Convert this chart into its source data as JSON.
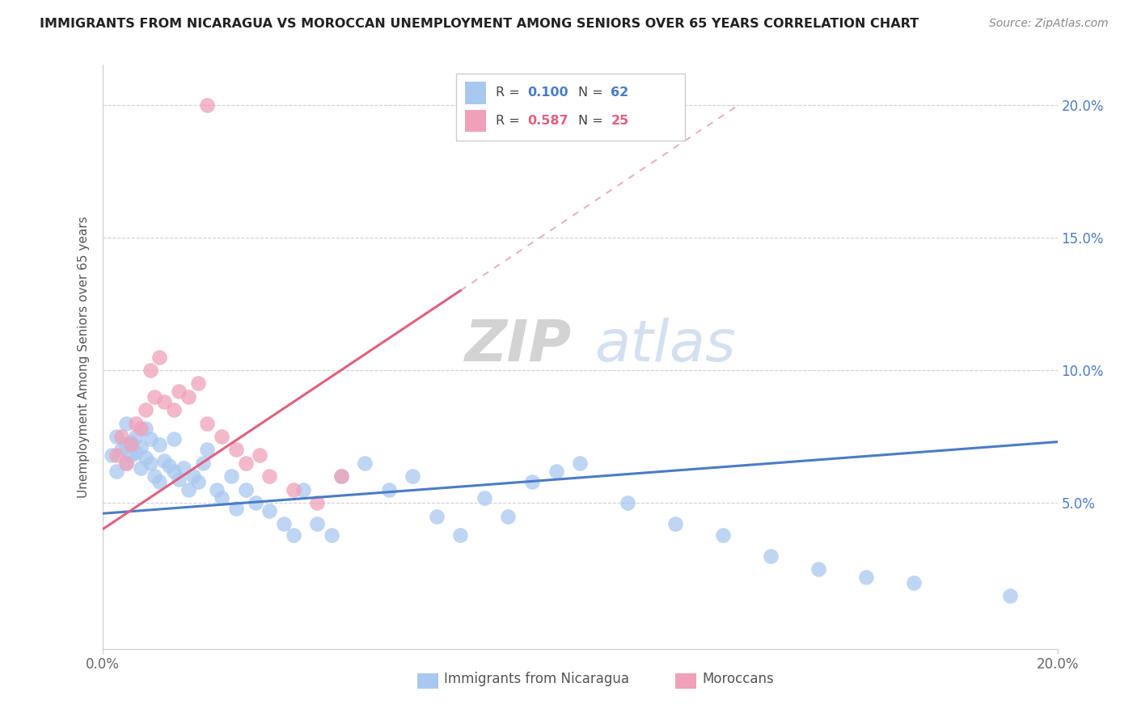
{
  "title": "IMMIGRANTS FROM NICARAGUA VS MOROCCAN UNEMPLOYMENT AMONG SENIORS OVER 65 YEARS CORRELATION CHART",
  "source": "Source: ZipAtlas.com",
  "ylabel": "Unemployment Among Seniors over 65 years",
  "xlim": [
    0.0,
    0.2
  ],
  "ylim": [
    -0.005,
    0.215
  ],
  "legend_r1": "R = 0.100",
  "legend_n1": "N = 62",
  "legend_r2": "R = 0.587",
  "legend_n2": "N = 25",
  "blue_color": "#a8c8f0",
  "pink_color": "#f0a0b8",
  "blue_line_color": "#4a7cc7",
  "pink_line_color": "#e06080",
  "watermark_zip": "ZIP",
  "watermark_atlas": "atlas",
  "background_color": "#ffffff",
  "blue_scatter_x": [
    0.002,
    0.003,
    0.003,
    0.004,
    0.005,
    0.005,
    0.005,
    0.006,
    0.006,
    0.007,
    0.007,
    0.008,
    0.008,
    0.009,
    0.009,
    0.01,
    0.01,
    0.011,
    0.012,
    0.012,
    0.013,
    0.014,
    0.015,
    0.015,
    0.016,
    0.017,
    0.018,
    0.019,
    0.02,
    0.021,
    0.022,
    0.024,
    0.025,
    0.027,
    0.028,
    0.03,
    0.032,
    0.035,
    0.038,
    0.04,
    0.042,
    0.045,
    0.048,
    0.05,
    0.055,
    0.06,
    0.065,
    0.07,
    0.075,
    0.08,
    0.085,
    0.09,
    0.095,
    0.1,
    0.11,
    0.12,
    0.13,
    0.14,
    0.15,
    0.16,
    0.17,
    0.19
  ],
  "blue_scatter_y": [
    0.068,
    0.062,
    0.075,
    0.07,
    0.065,
    0.072,
    0.08,
    0.068,
    0.073,
    0.069,
    0.075,
    0.063,
    0.071,
    0.067,
    0.078,
    0.065,
    0.074,
    0.06,
    0.058,
    0.072,
    0.066,
    0.064,
    0.062,
    0.074,
    0.059,
    0.063,
    0.055,
    0.06,
    0.058,
    0.065,
    0.07,
    0.055,
    0.052,
    0.06,
    0.048,
    0.055,
    0.05,
    0.047,
    0.042,
    0.038,
    0.055,
    0.042,
    0.038,
    0.06,
    0.065,
    0.055,
    0.06,
    0.045,
    0.038,
    0.052,
    0.045,
    0.058,
    0.062,
    0.065,
    0.05,
    0.042,
    0.038,
    0.03,
    0.025,
    0.022,
    0.02,
    0.015
  ],
  "pink_scatter_x": [
    0.003,
    0.004,
    0.005,
    0.006,
    0.007,
    0.008,
    0.009,
    0.01,
    0.011,
    0.012,
    0.013,
    0.015,
    0.016,
    0.018,
    0.02,
    0.022,
    0.025,
    0.028,
    0.03,
    0.033,
    0.035,
    0.04,
    0.045,
    0.05,
    0.022
  ],
  "pink_scatter_y": [
    0.068,
    0.075,
    0.065,
    0.072,
    0.08,
    0.078,
    0.085,
    0.1,
    0.09,
    0.105,
    0.088,
    0.085,
    0.092,
    0.09,
    0.095,
    0.08,
    0.075,
    0.07,
    0.065,
    0.068,
    0.06,
    0.055,
    0.05,
    0.06,
    0.2
  ],
  "blue_line_x0": 0.0,
  "blue_line_y0": 0.046,
  "blue_line_x1": 0.2,
  "blue_line_y1": 0.073,
  "pink_line_x0": 0.0,
  "pink_line_y0": 0.04,
  "pink_line_x1": 0.075,
  "pink_line_y1": 0.13
}
